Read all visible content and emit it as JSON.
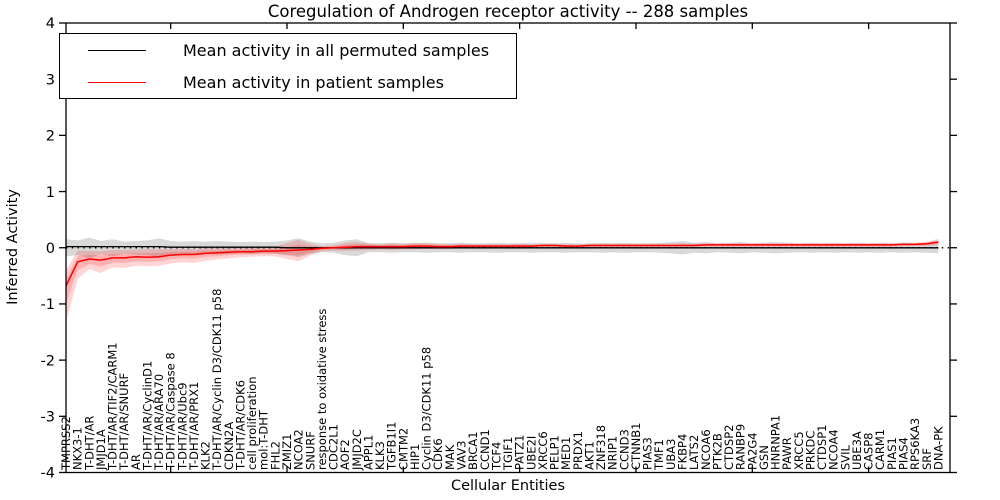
{
  "legend": {
    "items": [
      {
        "label": "Mean activity in all permuted samples",
        "color": "#000000"
      },
      {
        "label": "Mean activity in patient samples",
        "color": "#ff0000"
      }
    ]
  },
  "chart_data": {
    "type": "line",
    "title": "Coregulation of Androgen receptor activity -- 288 samples",
    "xlabel": "Cellular Entities",
    "ylabel": "Inferred Activity",
    "ylim": [
      -4,
      4
    ],
    "yticks": [
      4,
      3,
      2,
      1,
      0,
      -1,
      -2,
      -3,
      -4
    ],
    "grid": false,
    "legend_position": "upper left",
    "zero_line": {
      "style": "dotted",
      "color": "#000000"
    },
    "categories": [
      "TMPRSS2",
      "NKX3-1",
      "T-DHT/AR",
      "JMJD1A",
      "T-DHT/AR/TIF2/CARM1",
      "T-DHT/AR/SNURF",
      "AR",
      "T-DHT/AR/CyclinD1",
      "T-DHT/AR/ARA70",
      "T-DHT/AR/Caspase 8",
      "T-DHT/AR/Ubc9",
      "T-DHT/AR/PRX1",
      "KLK2",
      "T-DHT/AR/Cyclin D3/CDK11 p58",
      "CDKN2A",
      "T-DHT/AR/CDK6",
      "cell proliferation",
      "mol:T-DHT",
      "FHL2",
      "ZMIZ1",
      "NCOA2",
      "SNURF",
      "response to oxidative stress",
      "CDC2L1",
      "AOF2",
      "JMJD2C",
      "APPL1",
      "KLK3",
      "TGFB1I1",
      "CMTM2",
      "HIP1",
      "Cyclin D3/CDK11 p58",
      "CDK6",
      "MAK",
      "VAV3",
      "BRCA1",
      "CCND1",
      "TCF4",
      "TGIF1",
      "PATZ1",
      "UBE2I",
      "XRCC6",
      "PELP1",
      "MED1",
      "PRDX1",
      "AKT1",
      "ZNF318",
      "NRIP1",
      "CCND3",
      "CTNNB1",
      "PIAS3",
      "TMF1",
      "UBA3",
      "FKBP4",
      "LATS2",
      "NCOA6",
      "PTK2B",
      "CTDSP2",
      "RANBP9",
      "PA2G4",
      "GSN",
      "HNRNPA1",
      "PAWR",
      "XRCC5",
      "PRKDC",
      "CTDSP1",
      "NCOA4",
      "SVIL",
      "UBE3A",
      "CASP8",
      "CARM1",
      "PIAS1",
      "PIAS4",
      "RPS6KA3",
      "SRF",
      "DNA-PK"
    ],
    "series": [
      {
        "name": "Mean activity in all permuted samples",
        "color": "#000000",
        "values": [
          0.02,
          0.02,
          0.02,
          0.02,
          0.02,
          0.02,
          0.02,
          0.02,
          0.02,
          0.01,
          0.01,
          0.01,
          0.01,
          0.01,
          0.01,
          0.01,
          0.01,
          0.01,
          0.01,
          0,
          0,
          0,
          0,
          0,
          0,
          0,
          0,
          0,
          0,
          0,
          0,
          0,
          0,
          0,
          0,
          0,
          0,
          0,
          0,
          0,
          0,
          0,
          0,
          0,
          0,
          0,
          0,
          0,
          0,
          0,
          0,
          0,
          0,
          0,
          0,
          0,
          0,
          0,
          0,
          0,
          0,
          0,
          0,
          0,
          0,
          0,
          0,
          0,
          0,
          0,
          0,
          0,
          0,
          0,
          0,
          0
        ]
      },
      {
        "name": "Mean activity in patient samples",
        "color": "#ff0000",
        "values": [
          -0.68,
          -0.25,
          -0.2,
          -0.22,
          -0.18,
          -0.18,
          -0.16,
          -0.17,
          -0.16,
          -0.13,
          -0.12,
          -0.12,
          -0.1,
          -0.09,
          -0.08,
          -0.07,
          -0.07,
          -0.06,
          -0.06,
          -0.05,
          -0.04,
          -0.03,
          -0.01,
          0.0,
          0.01,
          0.02,
          0.02,
          0.02,
          0.02,
          0.02,
          0.03,
          0.03,
          0.02,
          0.02,
          0.03,
          0.03,
          0.03,
          0.03,
          0.03,
          0.03,
          0.03,
          0.04,
          0.04,
          0.03,
          0.03,
          0.04,
          0.04,
          0.04,
          0.04,
          0.04,
          0.04,
          0.04,
          0.04,
          0.04,
          0.04,
          0.05,
          0.05,
          0.05,
          0.05,
          0.05,
          0.05,
          0.05,
          0.05,
          0.05,
          0.05,
          0.05,
          0.05,
          0.05,
          0.05,
          0.05,
          0.05,
          0.05,
          0.06,
          0.06,
          0.07,
          0.1
        ]
      }
    ],
    "bands": [
      {
        "name": "permuted-samples-spread",
        "color": "rgba(0,0,0,0.15)",
        "low": [
          -0.15,
          -0.13,
          -0.18,
          -0.12,
          -0.15,
          -0.11,
          -0.12,
          -0.13,
          -0.17,
          -0.12,
          -0.11,
          -0.12,
          -0.11,
          -0.12,
          -0.11,
          -0.1,
          -0.11,
          -0.1,
          -0.11,
          -0.13,
          -0.17,
          -0.11,
          -0.08,
          -0.09,
          -0.13,
          -0.15,
          -0.08,
          -0.08,
          -0.09,
          -0.08,
          -0.08,
          -0.09,
          -0.08,
          -0.08,
          -0.09,
          -0.08,
          -0.08,
          -0.09,
          -0.08,
          -0.08,
          -0.09,
          -0.08,
          -0.08,
          -0.09,
          -0.08,
          -0.08,
          -0.09,
          -0.08,
          -0.09,
          -0.08,
          -0.08,
          -0.09,
          -0.1,
          -0.12,
          -0.09,
          -0.1,
          -0.08,
          -0.09,
          -0.1,
          -0.08,
          -0.09,
          -0.1,
          -0.09,
          -0.08,
          -0.09,
          -0.08,
          -0.09,
          -0.08,
          -0.09,
          -0.08,
          -0.09,
          -0.08,
          -0.09,
          -0.08,
          -0.09,
          -0.1
        ],
        "high": [
          0.15,
          0.13,
          0.18,
          0.12,
          0.15,
          0.11,
          0.12,
          0.13,
          0.17,
          0.12,
          0.11,
          0.12,
          0.11,
          0.12,
          0.11,
          0.1,
          0.11,
          0.1,
          0.11,
          0.13,
          0.17,
          0.11,
          0.08,
          0.09,
          0.13,
          0.15,
          0.08,
          0.08,
          0.09,
          0.08,
          0.08,
          0.09,
          0.08,
          0.08,
          0.09,
          0.08,
          0.08,
          0.09,
          0.08,
          0.08,
          0.09,
          0.08,
          0.08,
          0.09,
          0.08,
          0.08,
          0.09,
          0.08,
          0.09,
          0.08,
          0.08,
          0.09,
          0.1,
          0.12,
          0.09,
          0.1,
          0.08,
          0.09,
          0.1,
          0.08,
          0.09,
          0.1,
          0.09,
          0.08,
          0.09,
          0.08,
          0.09,
          0.08,
          0.09,
          0.08,
          0.09,
          0.08,
          0.09,
          0.08,
          0.09,
          0.1
        ]
      },
      {
        "name": "patient-samples-spread",
        "color": "rgba(255,0,0,0.17)",
        "low": [
          -1.33,
          -0.55,
          -0.38,
          -0.45,
          -0.35,
          -0.36,
          -0.32,
          -0.33,
          -0.32,
          -0.28,
          -0.26,
          -0.27,
          -0.23,
          -0.21,
          -0.19,
          -0.17,
          -0.16,
          -0.15,
          -0.15,
          -0.2,
          -0.24,
          -0.14,
          -0.06,
          -0.05,
          -0.06,
          -0.05,
          -0.04,
          -0.03,
          -0.04,
          -0.03,
          -0.03,
          -0.02,
          -0.02,
          -0.02,
          -0.01,
          -0.01,
          0.0,
          0.0,
          0.0,
          0.0,
          0.0,
          0.01,
          0.01,
          0.0,
          0.0,
          0.01,
          0.01,
          0.01,
          0.01,
          0.01,
          0.01,
          0.01,
          0.01,
          0.01,
          0.01,
          0.02,
          0.02,
          0.02,
          0.02,
          0.02,
          0.02,
          0.02,
          0.02,
          0.02,
          0.02,
          0.02,
          0.02,
          0.02,
          0.02,
          0.02,
          0.02,
          0.02,
          0.03,
          0.03,
          0.03,
          0.05
        ],
        "high": [
          -0.4,
          -0.05,
          -0.05,
          -0.06,
          -0.04,
          -0.04,
          -0.03,
          -0.03,
          -0.03,
          -0.02,
          -0.02,
          -0.02,
          -0.01,
          -0.01,
          0.0,
          0.0,
          0.01,
          0.01,
          0.02,
          0.09,
          0.14,
          0.07,
          0.03,
          0.04,
          0.09,
          0.1,
          0.08,
          0.06,
          0.08,
          0.07,
          0.09,
          0.08,
          0.07,
          0.06,
          0.07,
          0.06,
          0.06,
          0.06,
          0.06,
          0.07,
          0.06,
          0.07,
          0.07,
          0.06,
          0.06,
          0.07,
          0.07,
          0.07,
          0.07,
          0.07,
          0.07,
          0.07,
          0.07,
          0.08,
          0.07,
          0.08,
          0.08,
          0.08,
          0.08,
          0.08,
          0.08,
          0.08,
          0.08,
          0.08,
          0.08,
          0.08,
          0.08,
          0.08,
          0.08,
          0.08,
          0.08,
          0.08,
          0.09,
          0.09,
          0.11,
          0.16
        ]
      }
    ]
  }
}
